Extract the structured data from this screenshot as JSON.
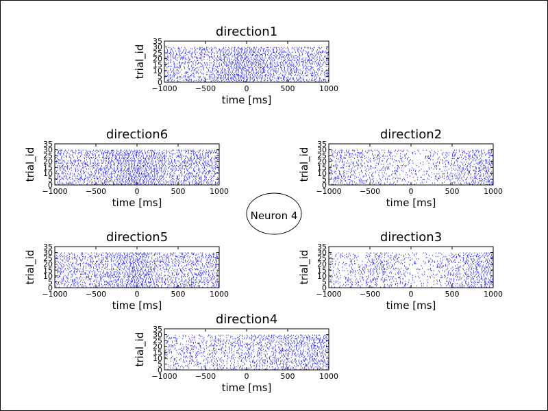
{
  "chart_data": {
    "type": "raster",
    "center_label": "Neuron 4",
    "panels": [
      {
        "title": "direction1",
        "xlabel": "time [ms]",
        "ylabel": "trial_id",
        "xlim": [
          -1000,
          1000
        ],
        "ylim": [
          0,
          35
        ],
        "xticks": [
          "−1000",
          "−500",
          "0",
          "500",
          "1000"
        ],
        "yticks": [
          "0",
          "5",
          "10",
          "15",
          "20",
          "25",
          "30",
          "35"
        ],
        "trials": 30,
        "spike_color": "#0000ff",
        "rate_profile": [
          [
            -1000,
            0.85
          ],
          [
            -800,
            0.9
          ],
          [
            -600,
            0.85
          ],
          [
            -400,
            0.9
          ],
          [
            -200,
            1.2
          ],
          [
            0,
            1.4
          ],
          [
            200,
            1.1
          ],
          [
            400,
            0.95
          ],
          [
            600,
            0.9
          ],
          [
            800,
            0.95
          ],
          [
            1000,
            0.9
          ]
        ]
      },
      {
        "title": "direction2",
        "xlabel": "time [ms]",
        "ylabel": "trial_id",
        "xlim": [
          -1000,
          1000
        ],
        "ylim": [
          0,
          35
        ],
        "xticks": [
          "−1000",
          "−500",
          "0",
          "500",
          "1000"
        ],
        "yticks": [
          "0",
          "5",
          "10",
          "15",
          "20",
          "25",
          "30",
          "35"
        ],
        "trials": 30,
        "spike_color": "#0000ff",
        "rate_profile": [
          [
            -1000,
            0.75
          ],
          [
            -800,
            0.7
          ],
          [
            -600,
            0.7
          ],
          [
            -400,
            0.65
          ],
          [
            -200,
            0.55
          ],
          [
            0,
            0.35
          ],
          [
            200,
            0.3
          ],
          [
            400,
            0.5
          ],
          [
            600,
            0.75
          ],
          [
            800,
            0.9
          ],
          [
            1000,
            0.9
          ]
        ]
      },
      {
        "title": "direction3",
        "xlabel": "time [ms]",
        "ylabel": "trial_id",
        "xlim": [
          -1000,
          1000
        ],
        "ylim": [
          0,
          35
        ],
        "xticks": [
          "−1000",
          "−500",
          "0",
          "500",
          "1000"
        ],
        "yticks": [
          "0",
          "5",
          "10",
          "15",
          "20",
          "25",
          "30",
          "35"
        ],
        "trials": 30,
        "spike_color": "#0000ff",
        "rate_profile": [
          [
            -1000,
            0.5
          ],
          [
            -800,
            0.5
          ],
          [
            -600,
            0.6
          ],
          [
            -400,
            0.8
          ],
          [
            -200,
            0.7
          ],
          [
            0,
            0.35
          ],
          [
            200,
            0.35
          ],
          [
            400,
            0.45
          ],
          [
            600,
            0.8
          ],
          [
            800,
            1.0
          ],
          [
            1000,
            0.9
          ]
        ]
      },
      {
        "title": "direction4",
        "xlabel": "time [ms]",
        "ylabel": "trial_id",
        "xlim": [
          -1000,
          1000
        ],
        "ylim": [
          0,
          35
        ],
        "xticks": [
          "−1000",
          "−500",
          "0",
          "500",
          "1000"
        ],
        "yticks": [
          "0",
          "5",
          "10",
          "15",
          "20",
          "25",
          "30",
          "35"
        ],
        "trials": 30,
        "spike_color": "#0000ff",
        "rate_profile": [
          [
            -1000,
            0.6
          ],
          [
            -800,
            0.55
          ],
          [
            -600,
            0.6
          ],
          [
            -400,
            0.7
          ],
          [
            -200,
            0.65
          ],
          [
            0,
            0.7
          ],
          [
            200,
            0.8
          ],
          [
            400,
            0.9
          ],
          [
            600,
            0.95
          ],
          [
            800,
            1.0
          ],
          [
            1000,
            0.95
          ]
        ]
      },
      {
        "title": "direction5",
        "xlabel": "time [ms]",
        "ylabel": "trial_id",
        "xlim": [
          -1000,
          1000
        ],
        "ylim": [
          0,
          35
        ],
        "xticks": [
          "−1000",
          "−500",
          "0",
          "500",
          "1000"
        ],
        "yticks": [
          "0",
          "5",
          "10",
          "15",
          "20",
          "25",
          "30",
          "35"
        ],
        "trials": 30,
        "spike_color": "#0000ff",
        "rate_profile": [
          [
            -1000,
            0.9
          ],
          [
            -800,
            0.85
          ],
          [
            -600,
            0.8
          ],
          [
            -400,
            0.85
          ],
          [
            -200,
            1.1
          ],
          [
            0,
            1.3
          ],
          [
            200,
            1.0
          ],
          [
            400,
            0.8
          ],
          [
            600,
            0.85
          ],
          [
            800,
            0.95
          ],
          [
            1000,
            0.9
          ]
        ]
      },
      {
        "title": "direction6",
        "xlabel": "time [ms]",
        "ylabel": "trial_id",
        "xlim": [
          -1000,
          1000
        ],
        "ylim": [
          0,
          35
        ],
        "xticks": [
          "−1000",
          "−500",
          "0",
          "500",
          "1000"
        ],
        "yticks": [
          "0",
          "5",
          "10",
          "15",
          "20",
          "25",
          "30",
          "35"
        ],
        "trials": 30,
        "spike_color": "#0000ff",
        "rate_profile": [
          [
            -1000,
            0.95
          ],
          [
            -800,
            0.9
          ],
          [
            -600,
            0.85
          ],
          [
            -400,
            1.0
          ],
          [
            -200,
            1.3
          ],
          [
            0,
            1.5
          ],
          [
            200,
            1.2
          ],
          [
            400,
            0.95
          ],
          [
            600,
            0.9
          ],
          [
            800,
            1.0
          ],
          [
            1000,
            0.95
          ]
        ]
      }
    ]
  }
}
